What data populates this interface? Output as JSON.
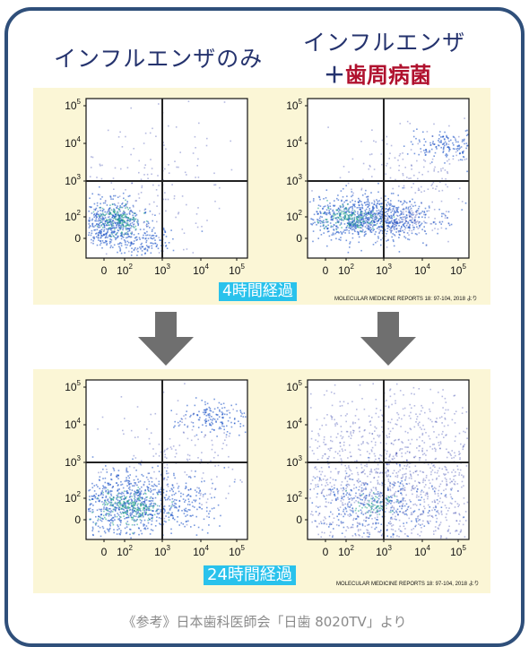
{
  "headers": {
    "left": "インフルエンザのみ",
    "right_line1": "インフルエンザ",
    "right_plus": "＋",
    "right_line2": "歯周病菌"
  },
  "panels": [
    {
      "time_label": "4時間経過",
      "reference": "MOLECULAR MEDICINE REPORTS 18: 97-104, 2018 より"
    },
    {
      "time_label": "24時間経過",
      "reference": "MOLECULAR MEDICINE REPORTS 18: 97-104, 2018 より"
    }
  ],
  "axis_ticks": {
    "x": [
      {
        "base": "0",
        "exp": ""
      },
      {
        "base": "10",
        "exp": "2"
      },
      {
        "base": "10",
        "exp": "3"
      },
      {
        "base": "10",
        "exp": "4"
      },
      {
        "base": "10",
        "exp": "5"
      }
    ],
    "y": [
      {
        "base": "10",
        "exp": "5"
      },
      {
        "base": "10",
        "exp": "4"
      },
      {
        "base": "10",
        "exp": "3"
      },
      {
        "base": "10",
        "exp": "2"
      },
      {
        "base": "0",
        "exp": ""
      }
    ]
  },
  "colors": {
    "frame": "#2f4f7a",
    "heading": "#25336e",
    "heading_accent": "#b0112e",
    "panel_bg": "#fbf6d6",
    "badge": "#29c2ec",
    "arrow": "#6f6f6f",
    "footer": "#8a8a8a",
    "dot": "#2a3aa8",
    "dot_dense": "#1f56c8",
    "dot_hot": "#2aa88a"
  },
  "arrow_icon": "down-arrow-icon",
  "footer": "《参考》日本歯科医師会「日歯 8020TV」より"
}
